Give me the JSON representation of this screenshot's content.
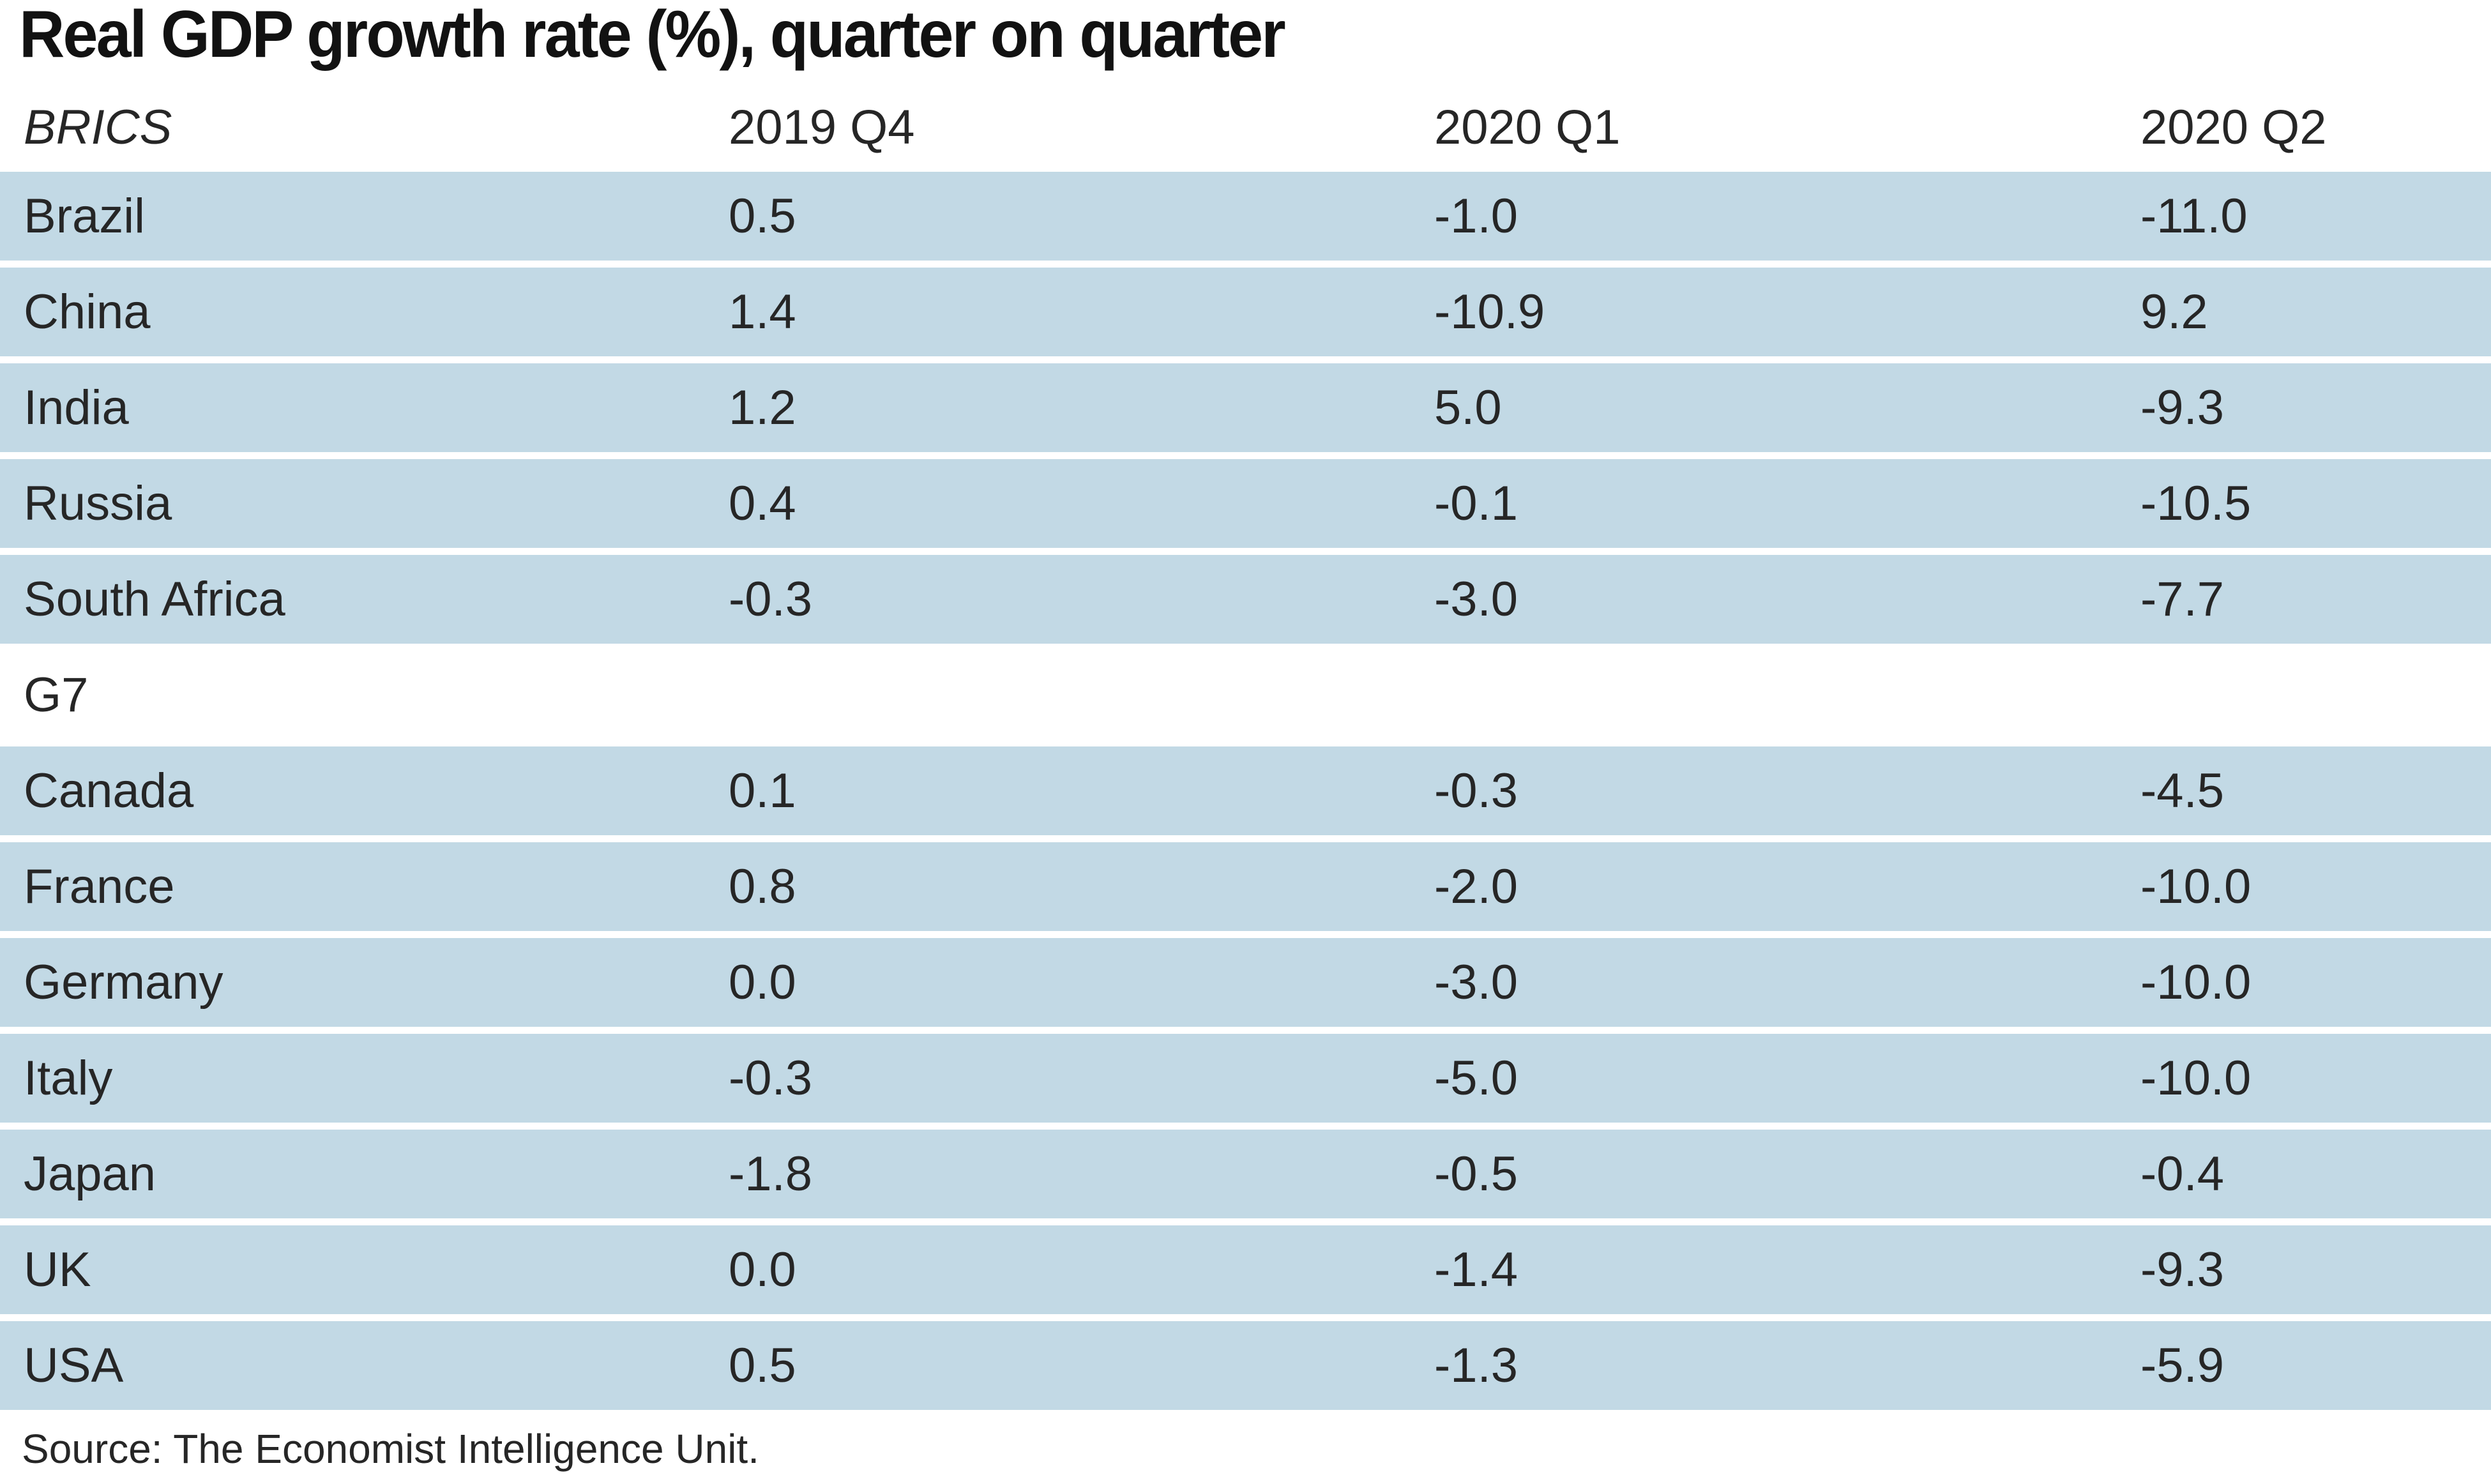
{
  "title": "Real GDP growth rate (%), quarter on quarter",
  "table": {
    "header": {
      "group_label": "BRICS",
      "columns": [
        "2019 Q4",
        "2020 Q1",
        "2020 Q2"
      ]
    },
    "sections": [
      {
        "label": "BRICS",
        "rows": [
          {
            "country": "Brazil",
            "values": [
              "0.5",
              "-1.0",
              "-11.0"
            ]
          },
          {
            "country": "China",
            "values": [
              "1.4",
              "-10.9",
              "9.2"
            ]
          },
          {
            "country": "India",
            "values": [
              "1.2",
              "5.0",
              "-9.3"
            ]
          },
          {
            "country": "Russia",
            "values": [
              "0.4",
              "-0.1",
              "-10.5"
            ]
          },
          {
            "country": "South Africa",
            "values": [
              "-0.3",
              "-3.0",
              "-7.7"
            ]
          }
        ]
      },
      {
        "label": "G7",
        "rows": [
          {
            "country": "Canada",
            "values": [
              "0.1",
              "-0.3",
              "-4.5"
            ]
          },
          {
            "country": "France",
            "values": [
              "0.8",
              "-2.0",
              "-10.0"
            ]
          },
          {
            "country": "Germany",
            "values": [
              "0.0",
              "-3.0",
              "-10.0"
            ]
          },
          {
            "country": "Italy",
            "values": [
              "-0.3",
              "-5.0",
              "-10.0"
            ]
          },
          {
            "country": "Japan",
            "values": [
              "-1.8",
              "-0.5",
              "-0.4"
            ]
          },
          {
            "country": "UK",
            "values": [
              "0.0",
              "-1.4",
              "-9.3"
            ]
          },
          {
            "country": "USA",
            "values": [
              "0.5",
              "-1.3",
              "-5.9"
            ]
          }
        ]
      }
    ]
  },
  "source": "Source: The Economist Intelligence Unit.",
  "colors": {
    "row_bg": "#c2d9e5",
    "text": "#262626",
    "title_text": "#121212",
    "background": "#ffffff"
  },
  "chart_data": {
    "type": "table",
    "title": "Real GDP growth rate (%), quarter on quarter",
    "columns": [
      "2019 Q4",
      "2020 Q1",
      "2020 Q2"
    ],
    "groups": [
      {
        "name": "BRICS",
        "rows": [
          {
            "label": "Brazil",
            "values": [
              0.5,
              -1.0,
              -11.0
            ]
          },
          {
            "label": "China",
            "values": [
              1.4,
              -10.9,
              9.2
            ]
          },
          {
            "label": "India",
            "values": [
              1.2,
              5.0,
              -9.3
            ]
          },
          {
            "label": "Russia",
            "values": [
              0.4,
              -0.1,
              -10.5
            ]
          },
          {
            "label": "South Africa",
            "values": [
              -0.3,
              -3.0,
              -7.7
            ]
          }
        ]
      },
      {
        "name": "G7",
        "rows": [
          {
            "label": "Canada",
            "values": [
              0.1,
              -0.3,
              -4.5
            ]
          },
          {
            "label": "France",
            "values": [
              0.8,
              -2.0,
              -10.0
            ]
          },
          {
            "label": "Germany",
            "values": [
              0.0,
              -3.0,
              -10.0
            ]
          },
          {
            "label": "Italy",
            "values": [
              -0.3,
              -5.0,
              -10.0
            ]
          },
          {
            "label": "Japan",
            "values": [
              -1.8,
              -0.5,
              -0.4
            ]
          },
          {
            "label": "UK",
            "values": [
              0.0,
              -1.4,
              -9.3
            ]
          },
          {
            "label": "USA",
            "values": [
              0.5,
              -1.3,
              -5.9
            ]
          }
        ]
      }
    ],
    "source": "Source: The Economist Intelligence Unit."
  }
}
